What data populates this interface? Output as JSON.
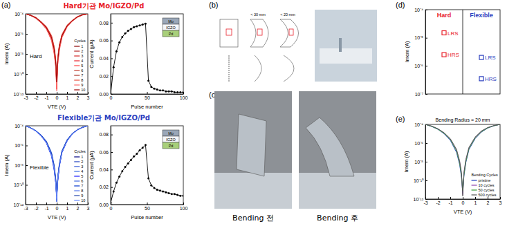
{
  "chart_data": [
    {
      "type": "line",
      "log": "y",
      "xlabel": "VTE (V)",
      "ylabel": "Imem (A)",
      "annotations": [
        "Hard"
      ],
      "legend": "lower right",
      "legend_title": "Cycles",
      "xlim": [
        -3,
        3
      ],
      "xticks": [
        -3,
        -2,
        -1,
        0,
        1,
        2,
        3
      ],
      "ylim": [
        1e-12,
        0.0001
      ],
      "yticks": [
        {
          "value": 1e-12,
          "label": "10⁻¹²"
        },
        {
          "value": 1e-10,
          "label": "10⁻¹⁰"
        },
        {
          "value": 1e-08,
          "label": "10⁻⁸"
        },
        {
          "value": 1e-06,
          "label": "10⁻⁶"
        },
        {
          "value": 0.0001,
          "label": "10⁻⁴"
        }
      ],
      "x": [
        -3,
        -2.5,
        -2,
        -1.5,
        -1,
        -0.5,
        -0.25,
        -0.1,
        0,
        0.1,
        0.25,
        0.5,
        1,
        1.5,
        2,
        2.5,
        3
      ],
      "series": [
        {
          "name": "1",
          "color": "#8b0000",
          "values": [
            0.0001,
            7e-05,
            4e-05,
            1.5e-05,
            4e-06,
            4e-07,
            3e-08,
            1e-09,
            1e-11,
            2e-09,
            5e-08,
            6e-07,
            6e-06,
            2e-05,
            5e-05,
            8e-05,
            0.0001
          ]
        },
        {
          "name": "2",
          "color": "#b22222",
          "values": [
            0.0001,
            7e-05,
            4e-05,
            1.5e-05,
            5e-06,
            5e-07,
            4e-08,
            2e-09,
            3e-12,
            3e-09,
            6e-08,
            7e-07,
            6e-06,
            2e-05,
            5e-05,
            8e-05,
            0.0001
          ]
        },
        {
          "name": "3",
          "color": "#d62728",
          "values": [
            0.0001,
            7e-05,
            3.5e-05,
            1.2e-05,
            3e-06,
            3e-07,
            2e-08,
            8e-10,
            2e-11,
            1.5e-09,
            4e-08,
            5e-07,
            5e-06,
            2e-05,
            5e-05,
            8e-05,
            0.0001
          ]
        },
        {
          "name": "4",
          "color": "#e8202a",
          "values": [
            0.0001,
            7e-05,
            4e-05,
            1.6e-05,
            5e-06,
            6e-07,
            5e-08,
            3e-09,
            5e-12,
            4e-09,
            7e-08,
            8e-07,
            7e-06,
            2.2e-05,
            5e-05,
            8e-05,
            0.0001
          ]
        },
        {
          "name": "5",
          "color": "#ff4040",
          "values": [
            0.0001,
            6.5e-05,
            3.5e-05,
            1.3e-05,
            3.5e-06,
            2e-07,
            1e-08,
            5e-10,
            3e-12,
            8e-10,
            2e-08,
            4e-07,
            5e-06,
            1.8e-05,
            4.5e-05,
            7.5e-05,
            0.0001
          ]
        },
        {
          "name": "6",
          "color": "#c0392b",
          "values": [
            0.0001,
            7e-05,
            4e-05,
            1.5e-05,
            4.5e-06,
            4.5e-07,
            3.5e-08,
            1.5e-09,
            8e-12,
            2.5e-09,
            5.5e-08,
            6.5e-07,
            6.5e-06,
            2e-05,
            5e-05,
            8e-05,
            0.0001
          ]
        },
        {
          "name": "7",
          "color": "#a93226",
          "values": [
            0.0001,
            7e-05,
            4e-05,
            1.4e-05,
            4e-06,
            3.5e-07,
            2.5e-08,
            1.2e-09,
            4e-11,
            2e-09,
            4.5e-08,
            5.5e-07,
            6e-06,
            2e-05,
            5e-05,
            8e-05,
            0.0001
          ]
        },
        {
          "name": "8",
          "color": "#e74c3c",
          "values": [
            0.0001,
            7.5e-05,
            4.5e-05,
            1.7e-05,
            5.5e-06,
            7e-07,
            6e-08,
            4e-09,
            6e-12,
            5e-09,
            8e-08,
            9e-07,
            7.5e-06,
            2.3e-05,
            5.5e-05,
            8.5e-05,
            0.0001
          ]
        },
        {
          "name": "9",
          "color": "#ff6b6b",
          "values": [
            0.0001,
            7e-05,
            3.8e-05,
            1.4e-05,
            3.8e-06,
            3e-07,
            1.5e-08,
            6e-10,
            2e-12,
            1e-09,
            3e-08,
            4.5e-07,
            5.5e-06,
            1.9e-05,
            4.8e-05,
            7.8e-05,
            0.0001
          ]
        },
        {
          "name": "10",
          "color": "#990000",
          "values": [
            0.0001,
            7e-05,
            4e-05,
            1.5e-05,
            4.2e-06,
            4.2e-07,
            3.2e-08,
            1.8e-09,
            1.5e-11,
            2.2e-09,
            5.2e-08,
            6.2e-07,
            6.2e-06,
            2e-05,
            5e-05,
            8e-05,
            0.0001
          ]
        }
      ]
    },
    {
      "type": "line",
      "xlabel": "Pulse number",
      "ylabel": "Current (μA)",
      "inset_layers": [
        "Mo",
        "IGZO",
        "Pd"
      ],
      "xlim": [
        0,
        100
      ],
      "xticks": [
        0,
        50,
        100
      ],
      "ylim": [
        0,
        0.09
      ],
      "yticks": [
        {
          "value": 0,
          "label": "0.00"
        },
        {
          "value": 0.02,
          "label": "0.02"
        },
        {
          "value": 0.04,
          "label": "0.04"
        },
        {
          "value": 0.06,
          "label": "0.06"
        },
        {
          "value": 0.08,
          "label": "0.08"
        }
      ],
      "x": [
        0,
        4,
        8,
        12,
        16,
        20,
        24,
        28,
        32,
        36,
        40,
        44,
        48,
        52,
        56,
        60,
        64,
        68,
        72,
        76,
        80,
        84,
        88,
        92,
        96,
        100
      ],
      "series": [
        {
          "name": "Current",
          "color": "#000000",
          "marker": "circle",
          "values": [
            0,
            0.03,
            0.048,
            0.058,
            0.064,
            0.068,
            0.071,
            0.073,
            0.075,
            0.076,
            0.077,
            0.078,
            0.079,
            0.015,
            0.008,
            0.006,
            0.005,
            0.004,
            0.004,
            0.003,
            0.003,
            0.003,
            0.002,
            0.002,
            0.002,
            0.002
          ]
        }
      ]
    },
    {
      "type": "line",
      "log": "y",
      "xlabel": "VTE (V)",
      "ylabel": "Imem (A)",
      "annotations": [
        "Flexible"
      ],
      "legend": "lower right",
      "legend_title": "Cycles",
      "xlim": [
        -3,
        3
      ],
      "xticks": [
        -3,
        -2,
        -1,
        0,
        1,
        2,
        3
      ],
      "ylim": [
        1e-12,
        0.0001
      ],
      "yticks": [
        {
          "value": 1e-12,
          "label": "10⁻¹²"
        },
        {
          "value": 1e-10,
          "label": "10⁻¹⁰"
        },
        {
          "value": 1e-08,
          "label": "10⁻⁸"
        },
        {
          "value": 1e-06,
          "label": "10⁻⁶"
        },
        {
          "value": 0.0001,
          "label": "10⁻⁴"
        }
      ],
      "x": [
        -3,
        -2.5,
        -2,
        -1.5,
        -1,
        -0.5,
        -0.25,
        -0.1,
        0,
        0.1,
        0.25,
        0.5,
        1,
        1.5,
        2,
        2.5,
        3
      ],
      "series": [
        {
          "name": "1",
          "color": "#000080",
          "values": [
            0.0001,
            6e-05,
            3e-05,
            1e-05,
            2e-06,
            1e-07,
            5e-09,
            2e-10,
            5e-12,
            3e-10,
            8e-09,
            2e-07,
            3e-06,
            1.5e-05,
            4e-05,
            7e-05,
            0.0001
          ]
        },
        {
          "name": "2",
          "color": "#1f3fbf",
          "values": [
            0.0001,
            6e-05,
            3e-05,
            1.1e-05,
            2.5e-06,
            1.5e-07,
            8e-09,
            4e-10,
            2e-12,
            5e-10,
            1e-08,
            2.5e-07,
            3.5e-06,
            1.6e-05,
            4e-05,
            7e-05,
            0.0001
          ]
        },
        {
          "name": "3",
          "color": "#2b50d6",
          "values": [
            0.0001,
            6e-05,
            2.8e-05,
            9e-06,
            1.8e-06,
            8e-08,
            3e-09,
            1.5e-10,
            8e-12,
            2e-10,
            6e-09,
            1.8e-07,
            2.8e-06,
            1.4e-05,
            3.8e-05,
            6.8e-05,
            0.0001
          ]
        },
        {
          "name": "4",
          "color": "#3b6fe0",
          "values": [
            0.0001,
            6.2e-05,
            3.2e-05,
            1.2e-05,
            2.8e-06,
            2e-07,
            1.2e-08,
            6e-10,
            3e-12,
            7e-10,
            1.5e-08,
            3e-07,
            4e-06,
            1.7e-05,
            4.2e-05,
            7.2e-05,
            0.0001
          ]
        },
        {
          "name": "5",
          "color": "#1a1aff",
          "values": [
            0.0001,
            5.8e-05,
            2.9e-05,
            9.5e-06,
            1.9e-06,
            9e-08,
            4e-09,
            1.8e-10,
            1e-11,
            2.5e-10,
            7e-09,
            1.9e-07,
            2.9e-06,
            1.45e-05,
            3.9e-05,
            6.9e-05,
            0.0001
          ]
        },
        {
          "name": "6",
          "color": "#4169e1",
          "values": [
            0.0001,
            6e-05,
            3e-05,
            1e-05,
            2.2e-06,
            1.2e-07,
            6e-09,
            3e-10,
            4e-12,
            4e-10,
            9e-09,
            2.2e-07,
            3.2e-06,
            1.5e-05,
            4e-05,
            7e-05,
            0.0001
          ]
        },
        {
          "name": "7",
          "color": "#0033cc",
          "values": [
            0.0001,
            6e-05,
            3.1e-05,
            1.05e-05,
            2.4e-06,
            1.4e-07,
            7e-09,
            3.5e-10,
            6e-12,
            4.5e-10,
            9.5e-09,
            2.4e-07,
            3.4e-06,
            1.55e-05,
            4.1e-05,
            7.1e-05,
            0.0001
          ]
        },
        {
          "name": "8",
          "color": "#5577ee",
          "values": [
            0.0001,
            5.9e-05,
            2.9e-05,
            9.8e-06,
            2.1e-06,
            1.1e-07,
            5.5e-09,
            2.5e-10,
            2e-12,
            3.5e-10,
            8.5e-09,
            2.1e-07,
            3.1e-06,
            1.5e-05,
            4e-05,
            7e-05,
            0.0001
          ]
        },
        {
          "name": "9",
          "color": "#2244aa",
          "values": [
            0.0001,
            6.1e-05,
            3.1e-05,
            1.1e-05,
            2.6e-06,
            1.6e-07,
            9e-09,
            5e-10,
            7e-12,
            6e-10,
            1.2e-08,
            2.6e-07,
            3.6e-06,
            1.6e-05,
            4.1e-05,
            7.1e-05,
            0.0001
          ]
        },
        {
          "name": "10",
          "color": "#6688ff",
          "values": [
            0.0001,
            6e-05,
            3e-05,
            1e-05,
            2e-06,
            1e-07,
            5e-09,
            2.2e-10,
            4e-12,
            3.2e-10,
            8.2e-09,
            2e-07,
            3e-06,
            1.5e-05,
            4e-05,
            7e-05,
            0.0001
          ]
        }
      ]
    },
    {
      "type": "line",
      "xlabel": "Pulse number",
      "ylabel": "Current (μA)",
      "inset_layers": [
        "Mo",
        "IGZO",
        "Pd"
      ],
      "xlim": [
        0,
        100
      ],
      "xticks": [
        0,
        50,
        100
      ],
      "ylim": [
        0,
        0.09
      ],
      "yticks": [
        {
          "value": 0,
          "label": "0.00"
        },
        {
          "value": 0.02,
          "label": "0.02"
        },
        {
          "value": 0.04,
          "label": "0.04"
        },
        {
          "value": 0.06,
          "label": "0.06"
        },
        {
          "value": 0.08,
          "label": "0.08"
        }
      ],
      "x": [
        0,
        4,
        8,
        12,
        16,
        20,
        24,
        28,
        32,
        36,
        40,
        44,
        48,
        52,
        56,
        60,
        64,
        68,
        72,
        76,
        80,
        84,
        88,
        92,
        96,
        100
      ],
      "series": [
        {
          "name": "Current",
          "color": "#000000",
          "marker": "circle",
          "values": [
            0.002,
            0.015,
            0.025,
            0.032,
            0.038,
            0.043,
            0.047,
            0.051,
            0.055,
            0.058,
            0.062,
            0.065,
            0.068,
            0.03,
            0.022,
            0.019,
            0.017,
            0.016,
            0.015,
            0.014,
            0.013,
            0.012,
            0.012,
            0.011,
            0.01,
            0.01
          ]
        }
      ]
    },
    {
      "type": "scatter",
      "log": "y",
      "ylabel": "Imem (A)",
      "tick_labels": "y",
      "categories": [
        "Hard",
        "Flexible"
      ],
      "ylim": [
        1e-07,
        0.0001
      ],
      "yticks": [
        {
          "value": 1e-07,
          "label": "10⁻⁷"
        },
        {
          "value": 1e-06,
          "label": "10⁻⁶"
        },
        {
          "value": 1e-05,
          "label": "10⁻⁵"
        },
        {
          "value": 0.0001,
          "label": "10⁻⁴"
        }
      ],
      "series": [
        {
          "name": "HRS",
          "marker": "square",
          "colors": [
            "#e8202a",
            "#2b3fbf"
          ],
          "values": [
            2.5e-06,
            3.5e-07
          ]
        },
        {
          "name": "LRS",
          "marker": "square",
          "colors": [
            "#e8202a",
            "#2b3fbf"
          ],
          "values": [
            1.5e-05,
            2e-06
          ]
        }
      ]
    },
    {
      "type": "line",
      "log": "y",
      "title": "Bending Radius = 20 mm",
      "xlabel": "VTE (V)",
      "ylabel": "Imem (A)",
      "legend": "lower right",
      "legend_title": "Bending Cycles",
      "xlim": [
        -3,
        3
      ],
      "xticks": [
        -3,
        -2,
        -1,
        0,
        1,
        2,
        3
      ],
      "ylim": [
        1e-12,
        0.0001
      ],
      "yticks": [
        {
          "value": 1e-12,
          "label": "10⁻¹²"
        },
        {
          "value": 1e-10,
          "label": "10⁻¹⁰"
        },
        {
          "value": 1e-08,
          "label": "10⁻⁸"
        },
        {
          "value": 1e-06,
          "label": "10⁻⁶"
        },
        {
          "value": 0.0001,
          "label": "10⁻⁴"
        }
      ],
      "x": [
        -3,
        -2.5,
        -2,
        -1.5,
        -1,
        -0.5,
        -0.25,
        -0.1,
        0,
        0.1,
        0.25,
        0.5,
        1,
        1.5,
        2,
        2.5,
        3
      ],
      "series": [
        {
          "name": "pristine",
          "color": "#1f3fbf",
          "values": [
            0.0001,
            6e-05,
            3e-05,
            1e-05,
            2e-06,
            1e-07,
            5e-09,
            2e-10,
            5e-12,
            3e-10,
            8e-09,
            2e-07,
            3e-06,
            1.5e-05,
            4e-05,
            7e-05,
            0.0001
          ]
        },
        {
          "name": "10 cycles",
          "color": "#8e44ad",
          "values": [
            0.0001,
            6.5e-05,
            3.3e-05,
            1.2e-05,
            2.8e-06,
            1.8e-07,
            1e-08,
            5e-10,
            3e-12,
            6e-10,
            1.4e-08,
            3e-07,
            4e-06,
            1.8e-05,
            4.4e-05,
            7.4e-05,
            0.0001
          ]
        },
        {
          "name": "50 cycles",
          "color": "#3a9a3a",
          "values": [
            0.0001,
            6.2e-05,
            3.1e-05,
            1.1e-05,
            2.4e-06,
            1.4e-07,
            7e-09,
            3e-10,
            8e-12,
            4e-10,
            1e-08,
            2.5e-07,
            3.5e-06,
            1.6e-05,
            4.2e-05,
            7.2e-05,
            0.0001
          ]
        },
        {
          "name": "500 cycles",
          "color": "#555555",
          "values": [
            0.0001,
            6.8e-05,
            3.5e-05,
            1.3e-05,
            3e-06,
            2.2e-07,
            1.3e-08,
            7e-10,
            2e-12,
            8e-10,
            1.8e-08,
            3.5e-07,
            4.5e-06,
            2e-05,
            4.6e-05,
            7.6e-05,
            0.0001
          ]
        }
      ]
    }
  ],
  "figure": {
    "panel_labels": [
      "(a)",
      "(b)",
      "(c)",
      "(d)",
      "(e)"
    ],
    "headings": [
      "Hard기관 Mo/IGZO/Pd",
      "Flexible기관 Mo/IGZO/Pd"
    ],
    "diagram_labels": [
      "< 30 mm",
      "< 20 mm"
    ],
    "photo_captions": [
      "Bending 전",
      "Bending 후"
    ]
  }
}
